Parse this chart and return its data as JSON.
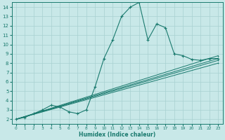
{
  "xlabel": "Humidex (Indice chaleur)",
  "bg_color": "#c8e8e8",
  "line_color": "#1a7a6e",
  "grid_color": "#a8d0d0",
  "xlim": [
    -0.5,
    23.5
  ],
  "ylim": [
    1.5,
    14.5
  ],
  "xticks": [
    0,
    1,
    2,
    3,
    4,
    5,
    6,
    7,
    8,
    9,
    10,
    11,
    12,
    13,
    14,
    15,
    16,
    17,
    18,
    19,
    20,
    21,
    22,
    23
  ],
  "yticks": [
    2,
    3,
    4,
    5,
    6,
    7,
    8,
    9,
    10,
    11,
    12,
    13,
    14
  ],
  "series": [
    {
      "x": [
        0,
        1,
        2,
        3,
        4,
        5,
        6,
        7,
        8,
        9,
        10,
        11,
        12,
        13,
        14,
        15,
        16,
        17,
        18,
        19,
        20,
        21,
        22,
        23
      ],
      "y": [
        2.0,
        2.2,
        2.6,
        3.0,
        3.5,
        3.3,
        2.8,
        2.6,
        3.0,
        5.5,
        8.5,
        10.5,
        13.0,
        14.0,
        14.5,
        10.5,
        12.2,
        11.8,
        9.0,
        8.8,
        8.4,
        8.3,
        8.5,
        8.5
      ]
    },
    {
      "x": [
        0,
        23
      ],
      "y": [
        2.0,
        8.8
      ]
    },
    {
      "x": [
        0,
        23
      ],
      "y": [
        2.0,
        8.5
      ]
    },
    {
      "x": [
        0,
        23
      ],
      "y": [
        2.0,
        8.3
      ]
    },
    {
      "x": [
        0,
        23
      ],
      "y": [
        2.0,
        8.0
      ]
    }
  ]
}
